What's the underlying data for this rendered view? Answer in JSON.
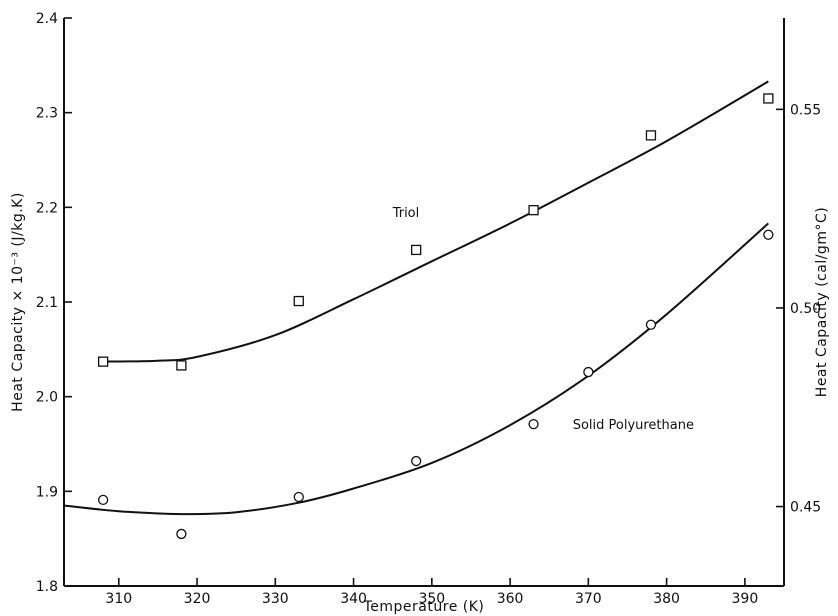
{
  "chart_data": {
    "type": "scatter",
    "xlabel": "Temperature (K)",
    "ylabel": "Heat Capacity × 10⁻³ (J/kg.K)",
    "ylabel_right": "Heat Capacity (cal/gm°C)",
    "xlim": [
      303,
      395
    ],
    "ylim": [
      1.8,
      2.4
    ],
    "ylim_right": [
      0.43,
      0.573
    ],
    "x_ticks": [
      310,
      320,
      330,
      340,
      350,
      360,
      370,
      380,
      390
    ],
    "y_ticks": [
      1.8,
      1.9,
      2.0,
      2.1,
      2.2,
      2.3,
      2.4
    ],
    "y_tick_labels": [
      "1.8",
      "1.9",
      "2.0",
      "2.1",
      "2.2",
      "2.3",
      "2.4"
    ],
    "y_right_ticks": [
      0.45,
      0.5,
      0.55
    ],
    "y_right_tick_labels": [
      "0.45",
      "0.50",
      "0.55"
    ],
    "grid": false,
    "series": [
      {
        "name": "Triol",
        "marker": "square",
        "points": [
          [
            308,
            2.037
          ],
          [
            318,
            2.033
          ],
          [
            333,
            2.101
          ],
          [
            348,
            2.155
          ],
          [
            363,
            2.197
          ],
          [
            378,
            2.276
          ],
          [
            393,
            2.315
          ]
        ],
        "fit_curve": [
          [
            308,
            2.037
          ],
          [
            315,
            2.038
          ],
          [
            320,
            2.042
          ],
          [
            330,
            2.065
          ],
          [
            340,
            2.103
          ],
          [
            350,
            2.143
          ],
          [
            360,
            2.183
          ],
          [
            370,
            2.226
          ],
          [
            380,
            2.27
          ],
          [
            393,
            2.333
          ]
        ]
      },
      {
        "name": "Solid Polyurethane",
        "marker": "circle",
        "points": [
          [
            308,
            1.891
          ],
          [
            318,
            1.855
          ],
          [
            333,
            1.894
          ],
          [
            348,
            1.932
          ],
          [
            363,
            1.971
          ],
          [
            370,
            2.026
          ],
          [
            378,
            2.076
          ],
          [
            393,
            2.171
          ]
        ],
        "fit_curve": [
          [
            303,
            1.885
          ],
          [
            310,
            1.879
          ],
          [
            318,
            1.876
          ],
          [
            325,
            1.878
          ],
          [
            333,
            1.888
          ],
          [
            340,
            1.903
          ],
          [
            350,
            1.93
          ],
          [
            360,
            1.97
          ],
          [
            370,
            2.022
          ],
          [
            380,
            2.087
          ],
          [
            393,
            2.183
          ]
        ]
      }
    ]
  }
}
